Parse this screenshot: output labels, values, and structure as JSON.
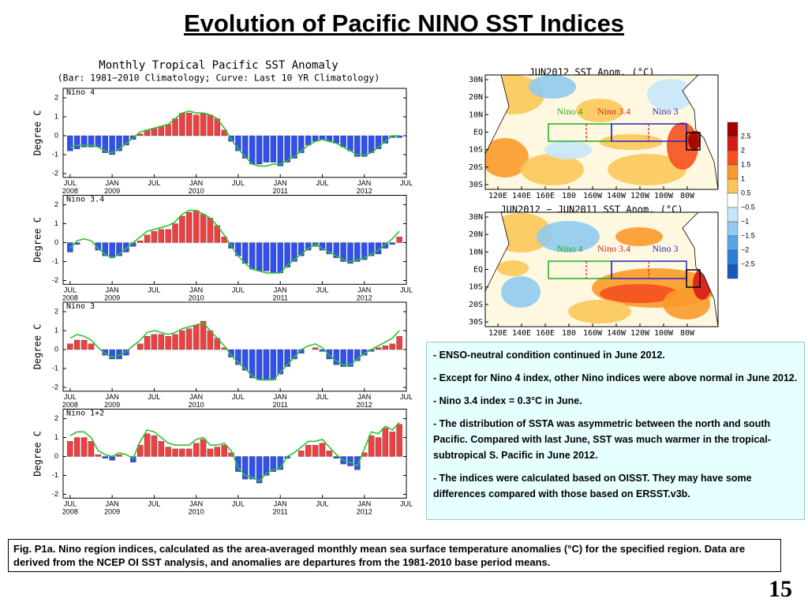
{
  "title": "Evolution of Pacific NINO SST Indices",
  "bullets": [
    "- ENSO-neutral condition continued in June 2012.",
    "- Except for Nino 4 index, other Nino indices were above normal in June 2012.",
    "- Nino 3.4 index = 0.3°C in June.",
    "- The distribution of SSTA was asymmetric between the north and south Pacific. Compared with last June, SST was much warmer in the tropical-subtropical S. Pacific in June 2012.",
    "- The indices were calculated based on OISST. They may have some differences compared with those based on ERSST.v3b."
  ],
  "caption": "Fig. P1a. Nino region indices, calculated as the area-averaged monthly mean sea surface temperature anomalies (°C) for the specified region. Data are derived from the NCEP OI SST analysis, and anomalies are departures from the 1981-2010 base period means.",
  "page_number": "15",
  "maps": {
    "panels": [
      {
        "title": "JUN2012 SST Anom. (°C)"
      },
      {
        "title": "JUN2012 − JUN2011 SST Anom. (°C)"
      }
    ],
    "lat_labels": [
      "30N",
      "20N",
      "10N",
      "EQ",
      "10S",
      "20S",
      "30S"
    ],
    "lon_labels": [
      "120E",
      "140E",
      "160E",
      "180",
      "160W",
      "140W",
      "120W",
      "100W",
      "80W"
    ],
    "regions": [
      {
        "label": "Nino 4",
        "color": "#22aa22"
      },
      {
        "label": "Nino 3.4",
        "color": "#dd2222"
      },
      {
        "label": "Nino 3",
        "color": "#2222cc"
      }
    ],
    "colorbar": {
      "labels": [
        "2.5",
        "2",
        "1.5",
        "1",
        "0.5",
        "−0.5",
        "−1",
        "−1.5",
        "−2",
        "−2.5"
      ],
      "colors": [
        "#a00000",
        "#d81a1a",
        "#f5501e",
        "#fb9a2a",
        "#fcc75a",
        "#ffffff",
        "#c8e6f8",
        "#90caf0",
        "#55a6e6",
        "#2c7fd6",
        "#1458c0"
      ]
    }
  },
  "chart_data": {
    "type": "bar",
    "title": "Monthly Tropical Pacific SST Anomaly",
    "subtitle": "(Bar: 1981−2010 Climatology; Curve: Last 10 YR Climatology)",
    "ylabel": "Degree C",
    "color": "#ee4040",
    "neg_color": "#3050f0",
    "line_color": "#30c030",
    "x": [
      "2008-07",
      "2008-08",
      "2008-09",
      "2008-10",
      "2008-11",
      "2008-12",
      "2009-01",
      "2009-02",
      "2009-03",
      "2009-04",
      "2009-05",
      "2009-06",
      "2009-07",
      "2009-08",
      "2009-09",
      "2009-10",
      "2009-11",
      "2009-12",
      "2010-01",
      "2010-02",
      "2010-03",
      "2010-04",
      "2010-05",
      "2010-06",
      "2010-07",
      "2010-08",
      "2010-09",
      "2010-10",
      "2010-11",
      "2010-12",
      "2011-01",
      "2011-02",
      "2011-03",
      "2011-04",
      "2011-05",
      "2011-06",
      "2011-07",
      "2011-08",
      "2011-09",
      "2011-10",
      "2011-11",
      "2011-12",
      "2012-01",
      "2012-02",
      "2012-03",
      "2012-04",
      "2012-05",
      "2012-06"
    ],
    "xlim": [
      "2008-06",
      "2012-07"
    ],
    "xticks": [
      {
        "value": "2008-07",
        "label": "JUL",
        "year": "2008"
      },
      {
        "value": "2009-01",
        "label": "JAN",
        "year": "2009"
      },
      {
        "value": "2009-07",
        "label": "JUL"
      },
      {
        "value": "2010-01",
        "label": "JAN",
        "year": "2010"
      },
      {
        "value": "2010-07",
        "label": "JUL"
      },
      {
        "value": "2011-01",
        "label": "JAN",
        "year": "2011"
      },
      {
        "value": "2011-07",
        "label": "JUL"
      },
      {
        "value": "2012-01",
        "label": "JAN",
        "year": "2012"
      },
      {
        "value": "2012-07",
        "label": "JUL"
      }
    ],
    "ylim": [
      -2.2,
      2.5
    ],
    "yticks": [
      -2,
      -1,
      0,
      1,
      2
    ],
    "panels": [
      {
        "label": "Nino 4",
        "values": [
          -0.8,
          -0.7,
          -0.6,
          -0.6,
          -0.6,
          -0.9,
          -1.0,
          -0.8,
          -0.5,
          -0.2,
          0.1,
          0.3,
          0.4,
          0.5,
          0.6,
          0.9,
          1.2,
          1.2,
          1.1,
          1.2,
          1.1,
          0.9,
          0.3,
          -0.3,
          -0.8,
          -1.2,
          -1.5,
          -1.5,
          -1.4,
          -1.4,
          -1.6,
          -1.4,
          -1.2,
          -0.9,
          -0.5,
          -0.3,
          -0.2,
          -0.3,
          -0.4,
          -0.6,
          -0.8,
          -1.1,
          -1.1,
          -0.9,
          -0.7,
          -0.4,
          -0.1,
          -0.1
        ],
        "line_values": [
          -0.6,
          -0.5,
          -0.5,
          -0.5,
          -0.6,
          -0.8,
          -0.9,
          -0.7,
          -0.4,
          -0.1,
          0.2,
          0.3,
          0.4,
          0.5,
          0.6,
          0.9,
          1.2,
          1.3,
          1.2,
          1.2,
          1.1,
          0.9,
          0.4,
          -0.2,
          -0.7,
          -1.1,
          -1.5,
          -1.6,
          -1.6,
          -1.5,
          -1.5,
          -1.3,
          -1.1,
          -0.8,
          -0.5,
          -0.3,
          -0.2,
          -0.3,
          -0.4,
          -0.6,
          -0.8,
          -1.0,
          -1.0,
          -0.9,
          -0.6,
          -0.3,
          0.0,
          0.0
        ]
      },
      {
        "label": "Nino 3.4",
        "values": [
          -0.5,
          -0.1,
          0.0,
          0.0,
          -0.4,
          -0.7,
          -0.8,
          -0.7,
          -0.5,
          -0.2,
          0.1,
          0.4,
          0.6,
          0.7,
          0.7,
          1.0,
          1.4,
          1.6,
          1.7,
          1.5,
          1.3,
          0.9,
          0.3,
          -0.3,
          -0.7,
          -1.1,
          -1.4,
          -1.5,
          -1.5,
          -1.6,
          -1.6,
          -1.3,
          -1.0,
          -0.7,
          -0.4,
          -0.2,
          -0.4,
          -0.6,
          -0.8,
          -1.0,
          -1.1,
          -1.0,
          -0.9,
          -0.7,
          -0.6,
          -0.3,
          -0.1,
          0.3
        ],
        "line_values": [
          -0.3,
          0.1,
          0.2,
          0.1,
          -0.3,
          -0.6,
          -0.8,
          -0.6,
          -0.3,
          0.0,
          0.3,
          0.6,
          0.7,
          0.8,
          0.9,
          1.1,
          1.5,
          1.7,
          1.7,
          1.5,
          1.3,
          0.9,
          0.4,
          -0.2,
          -0.7,
          -1.1,
          -1.4,
          -1.5,
          -1.6,
          -1.6,
          -1.6,
          -1.2,
          -0.9,
          -0.6,
          -0.3,
          -0.1,
          -0.3,
          -0.5,
          -0.7,
          -0.9,
          -1.0,
          -0.9,
          -0.8,
          -0.6,
          -0.4,
          -0.1,
          0.2,
          0.6
        ]
      },
      {
        "label": "Nino 3",
        "values": [
          0.3,
          0.5,
          0.5,
          0.3,
          0.0,
          -0.3,
          -0.5,
          -0.5,
          -0.3,
          0.0,
          0.3,
          0.7,
          0.8,
          0.8,
          0.7,
          0.8,
          1.0,
          1.1,
          1.3,
          1.5,
          1.0,
          0.6,
          0.1,
          -0.4,
          -0.8,
          -1.1,
          -1.5,
          -1.6,
          -1.6,
          -1.6,
          -1.3,
          -0.9,
          -0.5,
          -0.2,
          0.0,
          0.1,
          -0.1,
          -0.5,
          -0.8,
          -0.9,
          -0.9,
          -0.6,
          -0.3,
          -0.1,
          0.1,
          0.2,
          0.3,
          0.7
        ],
        "line_values": [
          0.6,
          0.8,
          0.7,
          0.5,
          0.1,
          -0.2,
          -0.4,
          -0.3,
          -0.1,
          0.2,
          0.5,
          0.9,
          1.0,
          0.9,
          0.8,
          0.9,
          1.1,
          1.2,
          1.3,
          1.4,
          1.0,
          0.6,
          0.2,
          -0.3,
          -0.7,
          -1.0,
          -1.4,
          -1.6,
          -1.6,
          -1.6,
          -1.2,
          -0.8,
          -0.4,
          0.0,
          0.2,
          0.3,
          0.1,
          -0.3,
          -0.6,
          -0.8,
          -0.8,
          -0.5,
          -0.2,
          0.0,
          0.2,
          0.4,
          0.6,
          1.0
        ]
      },
      {
        "label": "Nino 1+2",
        "values": [
          0.8,
          1.0,
          1.0,
          0.8,
          0.1,
          -0.1,
          -0.2,
          0.1,
          0.0,
          -0.3,
          0.6,
          1.2,
          1.1,
          0.8,
          0.5,
          0.4,
          0.4,
          0.4,
          0.7,
          0.9,
          0.4,
          0.5,
          0.6,
          0.2,
          -0.8,
          -1.2,
          -1.2,
          -1.4,
          -1.0,
          -0.8,
          -0.7,
          -0.1,
          0.0,
          0.3,
          0.6,
          0.6,
          0.7,
          0.3,
          -0.1,
          -0.4,
          -0.5,
          -0.7,
          0.2,
          1.1,
          1.0,
          1.5,
          1.3,
          1.7
        ],
        "line_values": [
          1.1,
          1.3,
          1.3,
          1.0,
          0.3,
          0.1,
          0.0,
          0.2,
          0.1,
          -0.1,
          0.8,
          1.4,
          1.3,
          1.0,
          0.7,
          0.6,
          0.6,
          0.6,
          0.9,
          1.0,
          0.6,
          0.6,
          0.7,
          0.3,
          -0.6,
          -1.0,
          -1.1,
          -1.3,
          -0.9,
          -0.7,
          -0.6,
          0.0,
          0.2,
          0.5,
          0.8,
          0.8,
          0.9,
          0.5,
          0.1,
          -0.2,
          -0.3,
          -0.5,
          0.4,
          1.3,
          1.2,
          1.6,
          1.4,
          1.8
        ]
      }
    ]
  }
}
